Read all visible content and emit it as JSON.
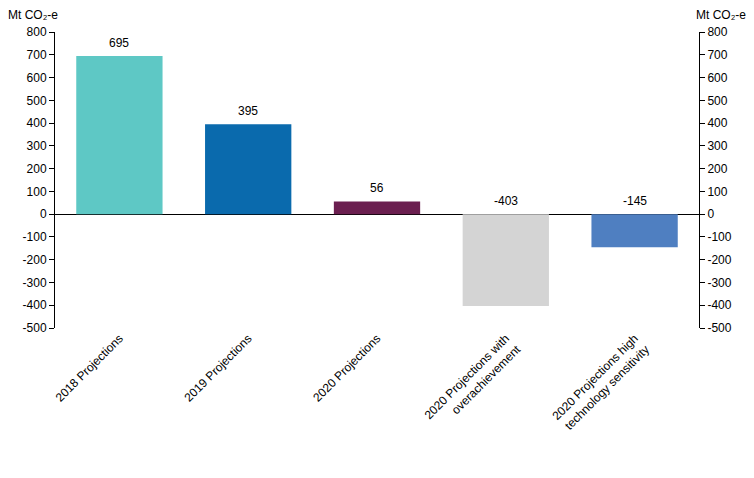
{
  "chart_data": {
    "type": "bar",
    "categories": [
      "2018 Projections",
      "2019 Projections",
      "2020 Projections",
      "2020 Projections with overachievement",
      "2020 Projections high technology sensitivity"
    ],
    "values": [
      695,
      395,
      56,
      -403,
      -145
    ],
    "colors": [
      "#5ec8c5",
      "#0a6aad",
      "#6b1f50",
      "#d4d4d4",
      "#4f7fc1"
    ],
    "ylabel": "Mt CO₂-e",
    "y2label": "Mt CO₂-e",
    "ylim": [
      -500,
      800
    ],
    "yticks": [
      -500,
      -400,
      -300,
      -200,
      -100,
      0,
      100,
      200,
      300,
      400,
      500,
      600,
      700,
      800
    ],
    "y2lim": [
      -500,
      800
    ],
    "y2ticks": [
      -500,
      -400,
      -300,
      -200,
      -100,
      0,
      100,
      200,
      300,
      400,
      500,
      600,
      700,
      800
    ],
    "grid": false,
    "data_labels": true
  }
}
